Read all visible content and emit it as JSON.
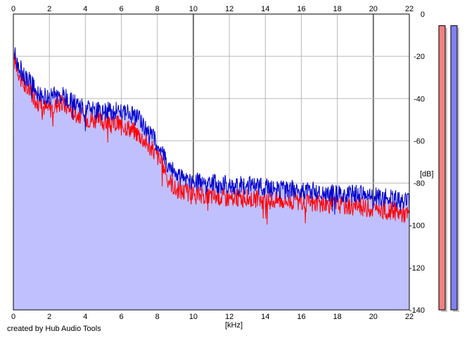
{
  "chart_data": {
    "type": "line",
    "title": "",
    "xlabel": "[kHz]",
    "ylabel": "[dB]",
    "xlim": [
      0,
      22
    ],
    "ylim": [
      -140,
      0
    ],
    "x_ticks": [
      0,
      2,
      4,
      6,
      8,
      10,
      12,
      14,
      16,
      18,
      20,
      22
    ],
    "y_ticks": [
      0,
      -20,
      -40,
      -60,
      -80,
      -100,
      -120,
      -140
    ],
    "grid": true,
    "series": [
      {
        "color": "#ff0000",
        "x": [
          0.1,
          0.5,
          1,
          1.5,
          2,
          2.5,
          3,
          3.5,
          4,
          4.5,
          5,
          5.5,
          6,
          6.5,
          7,
          7.5,
          8,
          8.5,
          9,
          9.5,
          10,
          11,
          12,
          13,
          14,
          15,
          16,
          17,
          18,
          19,
          20,
          21,
          22
        ],
        "values": [
          -22,
          -33,
          -38,
          -43,
          -45,
          -42,
          -44,
          -47,
          -49,
          -50,
          -51,
          -52,
          -52,
          -54,
          -57,
          -62,
          -67,
          -76,
          -83,
          -84,
          -85,
          -86,
          -87,
          -87,
          -88,
          -88,
          -89,
          -90,
          -90,
          -91,
          -92,
          -93,
          -95
        ]
      },
      {
        "color": "#0000cc",
        "x": [
          0.1,
          0.5,
          1,
          1.5,
          2,
          2.5,
          3,
          3.5,
          4,
          4.5,
          5,
          5.5,
          6,
          6.5,
          7,
          7.5,
          8,
          8.5,
          9,
          9.5,
          10,
          11,
          12,
          13,
          14,
          15,
          16,
          17,
          18,
          19,
          20,
          21,
          22
        ],
        "values": [
          -20,
          -28,
          -33,
          -38,
          -40,
          -38,
          -40,
          -43,
          -45,
          -46,
          -46,
          -46,
          -45,
          -47,
          -50,
          -55,
          -61,
          -70,
          -76,
          -78,
          -79,
          -80,
          -81,
          -81,
          -82,
          -83,
          -83,
          -84,
          -85,
          -85,
          -86,
          -87,
          -89
        ]
      }
    ],
    "fill_color": "#c0c0ff",
    "level_meters": [
      {
        "color": "#f08080",
        "level": -5.5
      },
      {
        "color": "#8080f0",
        "level": -5.5
      }
    ]
  },
  "credit": "created by Hub Audio Tools"
}
